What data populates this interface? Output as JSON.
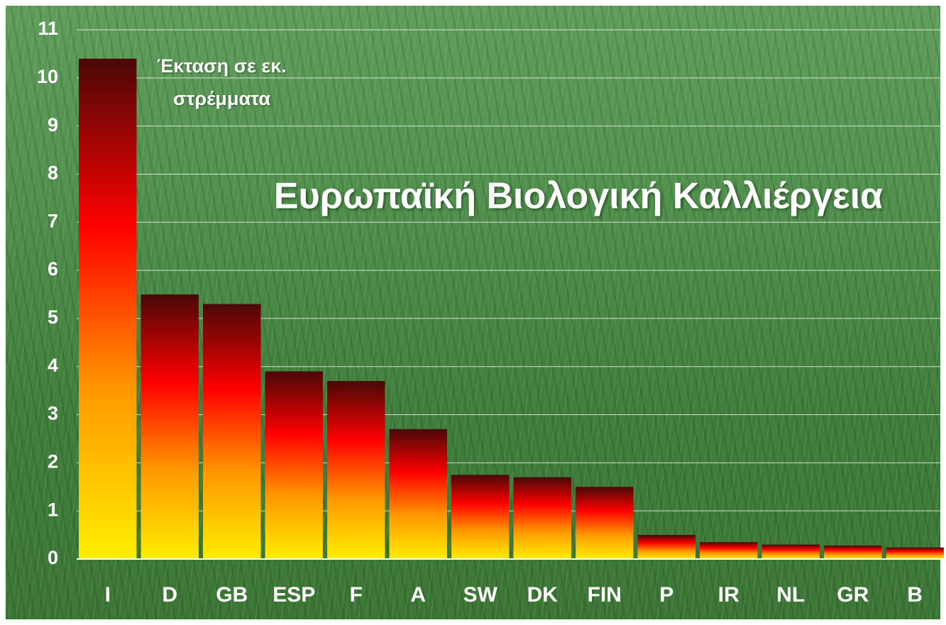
{
  "chart_data": {
    "type": "bar",
    "title": "Ευρωπαϊκή Βιολογική Καλλιέργεια",
    "ylabel": "Έκταση σε εκ. στρέμματα",
    "categories": [
      "I",
      "D",
      "GB",
      "ESP",
      "F",
      "A",
      "SW",
      "DK",
      "FIN",
      "P",
      "IR",
      "NL",
      "GR",
      "B"
    ],
    "values": [
      10.4,
      5.5,
      5.3,
      3.9,
      3.7,
      2.7,
      1.75,
      1.7,
      1.5,
      0.5,
      0.35,
      0.3,
      0.28,
      0.24
    ],
    "bar_gradient": [
      "#4a0808",
      "#ff0000",
      "#ff9900",
      "#ffee00"
    ],
    "ylim": [
      0,
      11
    ],
    "yticks": [
      0,
      1,
      2,
      3,
      4,
      5,
      6,
      7,
      8,
      9,
      10,
      11
    ],
    "grid": true
  }
}
